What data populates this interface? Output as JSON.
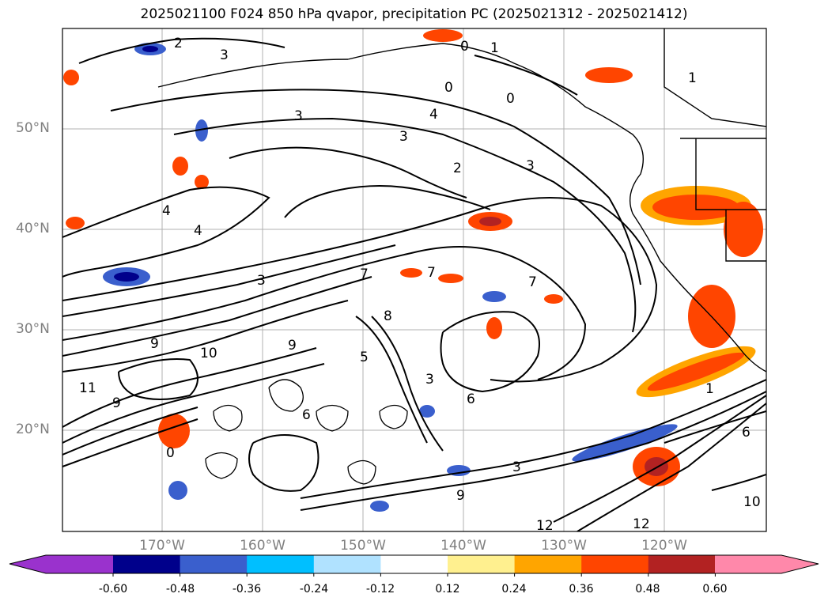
{
  "title": "2025021100 F024 850 hPa qvapor, precipitation PC (2025021312 - 2025021412)",
  "map": {
    "projection": "lat-lon",
    "lon_range": [
      "180°W",
      "110°W"
    ],
    "lat_range": [
      "10°N",
      "60°N"
    ],
    "lat_labels": [
      "50°N",
      "40°N",
      "30°N",
      "20°N"
    ],
    "lon_labels": [
      "170°W",
      "160°W",
      "150°W",
      "140°W",
      "130°W",
      "120°W"
    ],
    "gridlines": true,
    "contour_labels": [
      "2",
      "3",
      "0",
      "1",
      "1",
      "0",
      "0",
      "4",
      "3",
      "3",
      "2",
      "3",
      "4",
      "4",
      "3",
      "7",
      "7",
      "7",
      "8",
      "10",
      "9",
      "11",
      "9",
      "5",
      "3",
      "6",
      "9",
      "0",
      "10",
      "12",
      "12",
      "6",
      "1",
      "9",
      "6",
      "3"
    ]
  },
  "colorbar": {
    "extend": "both",
    "tick_labels": [
      "-0.60",
      "-0.48",
      "-0.36",
      "-0.24",
      "-0.12",
      "0.12",
      "0.24",
      "0.36",
      "0.48",
      "0.60"
    ],
    "colors": [
      "#9a32cd",
      "#00008b",
      "#3a5fcd",
      "#00bfff",
      "#b0e2ff",
      "#ffffff",
      "#fff08f",
      "#ffa500",
      "#ff4500",
      "#b22222",
      "#ff88aa"
    ]
  }
}
